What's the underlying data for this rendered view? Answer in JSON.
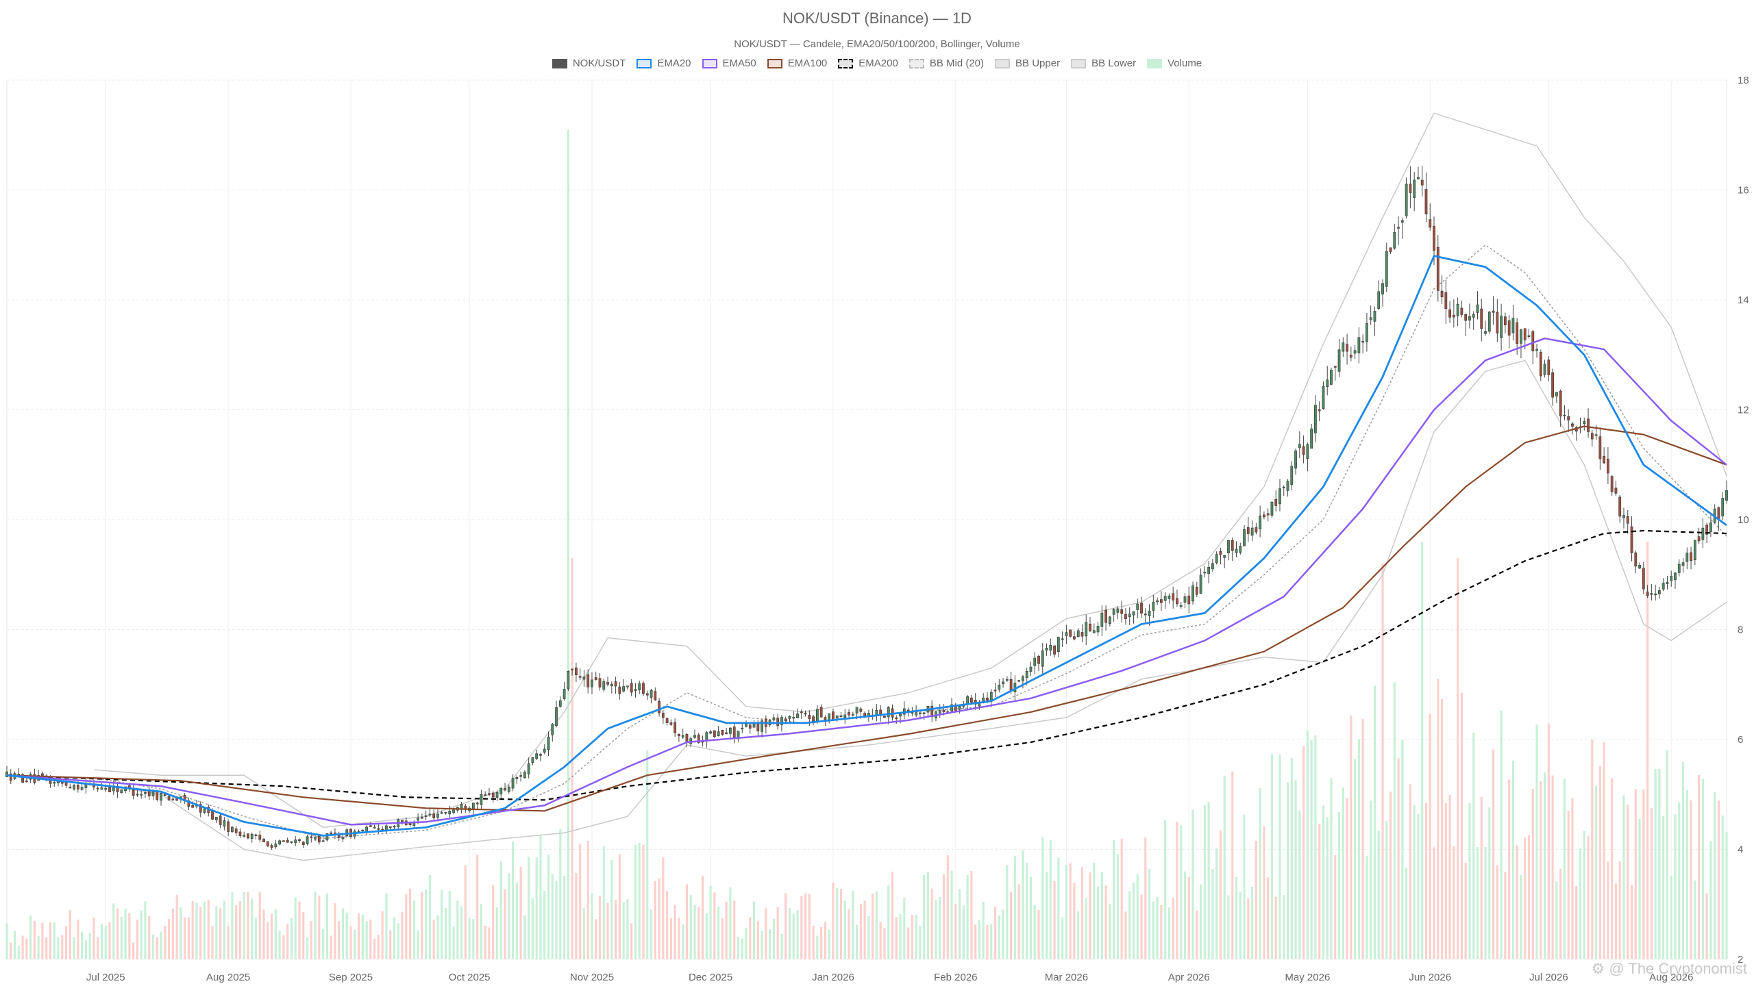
{
  "chart_data": {
    "type": "candlestick",
    "title": "NOK/USDT (Binance) — 1D",
    "subtitle": "NOK/USDT — Candele, EMA20/50/100/200, Bollinger, Volume",
    "legend": [
      {
        "name": "NOK/USDT",
        "color": "#555555",
        "fill": "#555555"
      },
      {
        "name": "EMA20",
        "color": "#1e88e5",
        "fill": "#dbeafd"
      },
      {
        "name": "EMA50",
        "color": "#8b5cf6",
        "fill": "#ece4fd"
      },
      {
        "name": "EMA100",
        "color": "#8b4a2b",
        "fill": "#f1e2da"
      },
      {
        "name": "EMA200",
        "color": "#000000",
        "fill": "#e6e6e6",
        "dashed": true
      },
      {
        "name": "BB Mid (20)",
        "color": "#bbbbbb",
        "fill": "#eeeeee",
        "dashed": true
      },
      {
        "name": "BB Upper",
        "color": "#cccccc",
        "fill": "#e6e6e6"
      },
      {
        "name": "BB Lower",
        "color": "#cccccc",
        "fill": "#e6e6e6"
      },
      {
        "name": "Volume",
        "color": "#c8f0d8",
        "fill": "#c8f0d8"
      }
    ],
    "x_axis": {
      "start": "2025-06-06",
      "end": "2026-08-15",
      "ticks": [
        {
          "label": "Jul 2025",
          "date": "2025-07-01"
        },
        {
          "label": "Aug 2025",
          "date": "2025-08-01"
        },
        {
          "label": "Sep 2025",
          "date": "2025-09-01"
        },
        {
          "label": "Oct 2025",
          "date": "2025-10-01"
        },
        {
          "label": "Nov 2025",
          "date": "2025-11-01"
        },
        {
          "label": "Dec 2025",
          "date": "2025-12-01"
        },
        {
          "label": "Jan 2026",
          "date": "2026-01-01"
        },
        {
          "label": "Feb 2026",
          "date": "2026-02-01"
        },
        {
          "label": "Mar 2026",
          "date": "2026-03-01"
        },
        {
          "label": "Apr 2026",
          "date": "2026-04-01"
        },
        {
          "label": "May 2026",
          "date": "2026-05-01"
        },
        {
          "label": "Jun 2026",
          "date": "2026-06-01"
        },
        {
          "label": "Jul 2026",
          "date": "2026-07-01"
        },
        {
          "label": "Aug 2026",
          "date": "2026-08-01"
        }
      ]
    },
    "y_axis": {
      "position": "right",
      "range": [
        2,
        18
      ],
      "ticks": [
        2,
        4,
        6,
        8,
        10,
        12,
        14,
        16,
        18
      ]
    },
    "grid": true,
    "legend_placement": "top-center",
    "colors": {
      "up": "#4f8a62",
      "down": "#a0503f",
      "volume_up": "#c8f0d8",
      "volume_down": "#fcd0cc"
    },
    "price_path": [
      [
        "2025-06-06",
        5.35
      ],
      [
        "2025-06-20",
        5.2
      ],
      [
        "2025-07-05",
        5.1
      ],
      [
        "2025-07-18",
        4.95
      ],
      [
        "2025-07-26",
        4.7
      ],
      [
        "2025-08-02",
        4.35
      ],
      [
        "2025-08-12",
        4.1
      ],
      [
        "2025-08-20",
        4.15
      ],
      [
        "2025-09-01",
        4.3
      ],
      [
        "2025-09-15",
        4.5
      ],
      [
        "2025-09-30",
        4.8
      ],
      [
        "2025-10-10",
        5.1
      ],
      [
        "2025-10-20",
        5.8
      ],
      [
        "2025-10-26",
        7.2
      ],
      [
        "2025-11-02",
        7.0
      ],
      [
        "2025-11-15",
        6.9
      ],
      [
        "2025-11-24",
        6.0
      ],
      [
        "2025-12-08",
        6.15
      ],
      [
        "2025-12-20",
        6.4
      ],
      [
        "2026-01-10",
        6.5
      ],
      [
        "2026-01-28",
        6.5
      ],
      [
        "2026-02-15",
        7.0
      ],
      [
        "2026-02-28",
        7.8
      ],
      [
        "2026-03-10",
        8.2
      ],
      [
        "2026-03-20",
        8.4
      ],
      [
        "2026-04-01",
        8.6
      ],
      [
        "2026-04-10",
        9.4
      ],
      [
        "2026-04-22",
        10.2
      ],
      [
        "2026-05-01",
        11.5
      ],
      [
        "2026-05-08",
        13.0
      ],
      [
        "2026-05-15",
        13.2
      ],
      [
        "2026-05-22",
        15.0
      ],
      [
        "2026-05-29",
        16.5
      ],
      [
        "2026-06-04",
        14.0
      ],
      [
        "2026-06-15",
        13.6
      ],
      [
        "2026-06-25",
        13.4
      ],
      [
        "2026-07-04",
        12.0
      ],
      [
        "2026-07-13",
        11.5
      ],
      [
        "2026-07-20",
        10.0
      ],
      [
        "2026-07-26",
        8.6
      ],
      [
        "2026-08-05",
        9.3
      ],
      [
        "2026-08-15",
        10.4
      ]
    ],
    "ema20_path": [
      [
        "2025-06-06",
        5.35
      ],
      [
        "2025-07-15",
        5.05
      ],
      [
        "2025-08-05",
        4.5
      ],
      [
        "2025-08-25",
        4.25
      ],
      [
        "2025-09-20",
        4.4
      ],
      [
        "2025-10-10",
        4.75
      ],
      [
        "2025-10-25",
        5.5
      ],
      [
        "2025-11-05",
        6.2
      ],
      [
        "2025-11-20",
        6.6
      ],
      [
        "2025-12-05",
        6.3
      ],
      [
        "2025-12-25",
        6.3
      ],
      [
        "2026-01-20",
        6.5
      ],
      [
        "2026-02-10",
        6.7
      ],
      [
        "2026-03-01",
        7.4
      ],
      [
        "2026-03-20",
        8.1
      ],
      [
        "2026-04-05",
        8.3
      ],
      [
        "2026-04-20",
        9.3
      ],
      [
        "2026-05-05",
        10.6
      ],
      [
        "2026-05-20",
        12.6
      ],
      [
        "2026-06-02",
        14.8
      ],
      [
        "2026-06-15",
        14.6
      ],
      [
        "2026-06-28",
        13.9
      ],
      [
        "2026-07-10",
        13.0
      ],
      [
        "2026-07-25",
        11.0
      ],
      [
        "2026-08-15",
        9.9
      ]
    ],
    "ema50_path": [
      [
        "2025-06-06",
        5.35
      ],
      [
        "2025-07-15",
        5.15
      ],
      [
        "2025-08-05",
        4.85
      ],
      [
        "2025-09-01",
        4.45
      ],
      [
        "2025-09-20",
        4.5
      ],
      [
        "2025-10-20",
        4.8
      ],
      [
        "2025-11-10",
        5.5
      ],
      [
        "2025-11-25",
        5.95
      ],
      [
        "2025-12-20",
        6.1
      ],
      [
        "2026-01-20",
        6.35
      ],
      [
        "2026-02-20",
        6.75
      ],
      [
        "2026-03-15",
        7.25
      ],
      [
        "2026-04-05",
        7.8
      ],
      [
        "2026-04-25",
        8.6
      ],
      [
        "2026-05-15",
        10.2
      ],
      [
        "2026-06-02",
        12.0
      ],
      [
        "2026-06-15",
        12.9
      ],
      [
        "2026-06-30",
        13.3
      ],
      [
        "2026-07-15",
        13.1
      ],
      [
        "2026-08-01",
        11.8
      ],
      [
        "2026-08-15",
        11.0
      ]
    ],
    "ema100_path": [
      [
        "2025-06-06",
        5.35
      ],
      [
        "2025-07-20",
        5.25
      ],
      [
        "2025-08-20",
        4.95
      ],
      [
        "2025-09-20",
        4.75
      ],
      [
        "2025-10-20",
        4.7
      ],
      [
        "2025-11-15",
        5.35
      ],
      [
        "2025-12-15",
        5.7
      ],
      [
        "2026-01-20",
        6.1
      ],
      [
        "2026-02-20",
        6.5
      ],
      [
        "2026-03-20",
        7.0
      ],
      [
        "2026-04-20",
        7.6
      ],
      [
        "2026-05-10",
        8.4
      ],
      [
        "2026-05-25",
        9.5
      ],
      [
        "2026-06-10",
        10.6
      ],
      [
        "2026-06-25",
        11.4
      ],
      [
        "2026-07-10",
        11.7
      ],
      [
        "2026-07-25",
        11.55
      ],
      [
        "2026-08-15",
        11.0
      ]
    ],
    "ema200_path": [
      [
        "2025-06-06",
        5.35
      ],
      [
        "2025-08-15",
        5.15
      ],
      [
        "2025-09-15",
        4.95
      ],
      [
        "2025-10-20",
        4.9
      ],
      [
        "2025-11-10",
        5.15
      ],
      [
        "2025-12-10",
        5.4
      ],
      [
        "2026-01-20",
        5.65
      ],
      [
        "2026-02-20",
        5.95
      ],
      [
        "2026-03-20",
        6.4
      ],
      [
        "2026-04-20",
        7.0
      ],
      [
        "2026-05-15",
        7.7
      ],
      [
        "2026-06-05",
        8.55
      ],
      [
        "2026-06-25",
        9.25
      ],
      [
        "2026-07-15",
        9.75
      ],
      [
        "2026-07-25",
        9.8
      ],
      [
        "2026-08-15",
        9.75
      ]
    ],
    "bb_mid_path": [
      [
        "2025-06-28",
        5.3
      ],
      [
        "2025-07-15",
        5.1
      ],
      [
        "2025-08-05",
        4.6
      ],
      [
        "2025-08-25",
        4.2
      ],
      [
        "2025-09-20",
        4.35
      ],
      [
        "2025-10-10",
        4.7
      ],
      [
        "2025-10-25",
        5.2
      ],
      [
        "2025-11-10",
        6.2
      ],
      [
        "2025-11-25",
        6.85
      ],
      [
        "2025-12-10",
        6.4
      ],
      [
        "2025-12-25",
        6.3
      ],
      [
        "2026-01-20",
        6.5
      ],
      [
        "2026-02-10",
        6.6
      ],
      [
        "2026-03-01",
        7.2
      ],
      [
        "2026-03-20",
        7.9
      ],
      [
        "2026-04-05",
        8.1
      ],
      [
        "2026-04-20",
        9.0
      ],
      [
        "2026-05-05",
        10.0
      ],
      [
        "2026-05-20",
        12.2
      ],
      [
        "2026-06-02",
        14.2
      ],
      [
        "2026-06-15",
        15.0
      ],
      [
        "2026-06-25",
        14.5
      ],
      [
        "2026-07-10",
        13.1
      ],
      [
        "2026-07-25",
        11.3
      ],
      [
        "2026-08-15",
        9.7
      ]
    ],
    "bb_upper_path": [
      [
        "2025-06-28",
        5.45
      ],
      [
        "2025-07-15",
        5.35
      ],
      [
        "2025-08-05",
        5.35
      ],
      [
        "2025-08-25",
        4.4
      ],
      [
        "2025-09-20",
        4.6
      ],
      [
        "2025-10-10",
        5.1
      ],
      [
        "2025-10-25",
        6.5
      ],
      [
        "2025-11-05",
        7.85
      ],
      [
        "2025-11-25",
        7.7
      ],
      [
        "2025-12-10",
        6.6
      ],
      [
        "2025-12-25",
        6.5
      ],
      [
        "2026-01-20",
        6.85
      ],
      [
        "2026-02-10",
        7.3
      ],
      [
        "2026-03-01",
        8.2
      ],
      [
        "2026-03-20",
        8.5
      ],
      [
        "2026-04-05",
        9.2
      ],
      [
        "2026-04-20",
        10.6
      ],
      [
        "2026-05-05",
        13.2
      ],
      [
        "2026-05-20",
        15.5
      ],
      [
        "2026-06-02",
        17.4
      ],
      [
        "2026-06-15",
        17.1
      ],
      [
        "2026-06-28",
        16.8
      ],
      [
        "2026-07-10",
        15.5
      ],
      [
        "2026-07-20",
        14.7
      ],
      [
        "2026-08-01",
        13.5
      ],
      [
        "2026-08-15",
        10.8
      ]
    ],
    "bb_lower_path": [
      [
        "2025-06-28",
        5.2
      ],
      [
        "2025-07-15",
        5.0
      ],
      [
        "2025-08-05",
        4.0
      ],
      [
        "2025-08-20",
        3.8
      ],
      [
        "2025-09-20",
        4.05
      ],
      [
        "2025-10-10",
        4.2
      ],
      [
        "2025-10-25",
        4.3
      ],
      [
        "2025-11-10",
        4.6
      ],
      [
        "2025-11-25",
        5.9
      ],
      [
        "2025-12-10",
        5.7
      ],
      [
        "2026-01-10",
        5.9
      ],
      [
        "2026-02-10",
        6.2
      ],
      [
        "2026-03-01",
        6.4
      ],
      [
        "2026-03-20",
        7.1
      ],
      [
        "2026-04-05",
        7.3
      ],
      [
        "2026-04-20",
        7.5
      ],
      [
        "2026-05-05",
        7.4
      ],
      [
        "2026-05-20",
        9.0
      ],
      [
        "2026-06-02",
        11.6
      ],
      [
        "2026-06-15",
        12.7
      ],
      [
        "2026-06-25",
        12.9
      ],
      [
        "2026-07-10",
        11.0
      ],
      [
        "2026-07-25",
        8.1
      ],
      [
        "2026-08-01",
        7.8
      ],
      [
        "2026-08-15",
        8.5
      ]
    ],
    "volume_spikes": [
      [
        "2025-10-26",
        17.1,
        "up"
      ],
      [
        "2025-10-27",
        9.3,
        "down"
      ],
      [
        "2025-11-15",
        5.8,
        "up"
      ],
      [
        "2026-05-20",
        9.2,
        "down"
      ],
      [
        "2026-05-30",
        9.6,
        "up"
      ],
      [
        "2026-06-08",
        9.3,
        "down"
      ],
      [
        "2026-07-26",
        9.6,
        "down"
      ]
    ],
    "volume_level_path": [
      [
        "2025-06-06",
        2.6
      ],
      [
        "2025-07-25",
        3.0
      ],
      [
        "2025-09-05",
        3.0
      ],
      [
        "2025-10-01",
        3.5
      ],
      [
        "2025-10-20",
        4.0
      ],
      [
        "2025-11-10",
        3.8
      ],
      [
        "2025-12-10",
        3.0
      ],
      [
        "2026-01-10",
        3.2
      ],
      [
        "2026-02-10",
        3.7
      ],
      [
        "2026-03-10",
        3.9
      ],
      [
        "2026-04-05",
        4.5
      ],
      [
        "2026-04-25",
        5.2
      ],
      [
        "2026-05-15",
        6.2
      ],
      [
        "2026-06-01",
        6.6
      ],
      [
        "2026-06-25",
        5.6
      ],
      [
        "2026-07-20",
        5.2
      ],
      [
        "2026-08-15",
        4.9
      ]
    ]
  },
  "watermark": "The Cryptonomist"
}
